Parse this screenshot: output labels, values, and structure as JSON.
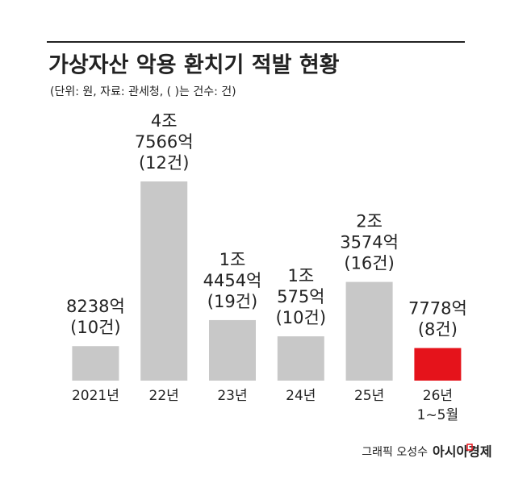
{
  "chart_data": {
    "type": "bar",
    "title": "가상자산 악용 환치기 적발 현황",
    "subtitle": "(단위: 원, 자료: 관세청, ( )는 건수: 건)",
    "categories": [
      [
        "2021년"
      ],
      [
        "22년"
      ],
      [
        "23년"
      ],
      [
        "24년"
      ],
      [
        "25년"
      ],
      [
        "26년",
        "1~5월"
      ]
    ],
    "values": [
      8238,
      47566,
      14454,
      10575,
      23574,
      7778
    ],
    "value_labels": [
      [
        "8238억"
      ],
      [
        "4조",
        "7566억"
      ],
      [
        "1조",
        "4454억"
      ],
      [
        "1조",
        "575억"
      ],
      [
        "2조",
        "3574억"
      ],
      [
        "7778억"
      ]
    ],
    "counts": [
      10,
      12,
      19,
      10,
      16,
      8
    ],
    "count_labels": [
      "(10건)",
      "(12건)",
      "(19건)",
      "(10건)",
      "(16건)",
      "(8건)"
    ],
    "colors": [
      "#c8c8c8",
      "#c8c8c8",
      "#c8c8c8",
      "#c8c8c8",
      "#c8c8c8",
      "#e5131b"
    ],
    "label_colors": [
      "#222222",
      "#222222",
      "#222222",
      "#222222",
      "#222222",
      "#d6131b"
    ],
    "credit": "그래픽 오성수",
    "source": "아시아경제"
  }
}
